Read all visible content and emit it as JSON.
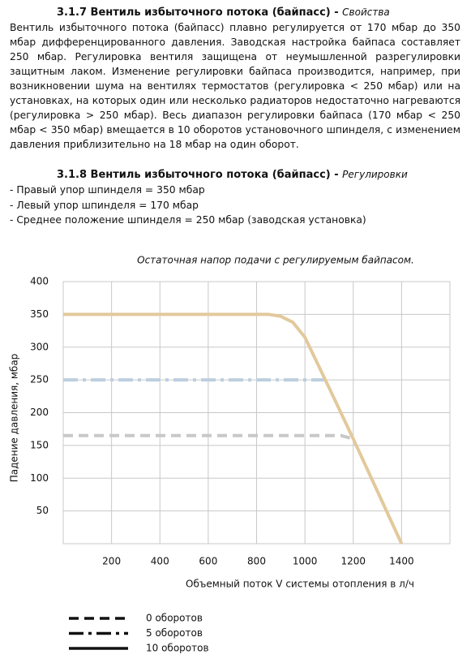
{
  "section1": {
    "heading": "3.1.7 Вентиль избыточного потока (байпасс) - ",
    "subheading": "Свойства",
    "paragraph": "Вентиль избыточного потока (байпасс) плавно регулируется от 170 мбар до 350 мбар дифференцированного давления. Заводская  настройка байпаса составляет 250 мбар. Регулировка вентиля защищена от неумышленной разрегулировки защитным лаком. Изменение регулировки байпаса производится, например, при возникновении шума на вентилях термостатов (регулировка < 250 мбар) или на установках, на которых один или несколько радиаторов недостаточно нагреваются (регулировка > 250 мбар). Весь диапазон регулировки байпаса (170 мбар < 250 мбар < 350 мбар) вмещается в 10 оборотов установочного шпинделя, с изменением давления приблизительно на 18 мбар на один оборот."
  },
  "section2": {
    "heading": "3.1.8 Вентиль избыточного потока (байпасс)  - ",
    "subheading": "Регулировки",
    "items": [
      "- Правый упор шпинделя = 350 мбар",
      "- Левый упор шпинделя = 170 мбар",
      "- Среднее положение шпинделя = 250 мбар (заводская установка)"
    ]
  },
  "chart_data": {
    "type": "line",
    "title": "Остаточная напор подачи с регулируемым байпасом.",
    "x_label": "Объемный поток V системы отопления в л/ч",
    "y_label": "Падение давления, мбар",
    "xlim": [
      0,
      1600
    ],
    "xticks": [
      200,
      400,
      600,
      800,
      1000,
      1200,
      1400
    ],
    "ylim": [
      0,
      400
    ],
    "yticks": [
      50,
      100,
      150,
      200,
      250,
      300,
      350,
      400
    ],
    "grid": true,
    "series": [
      {
        "name": "0 оборотов",
        "color": "#c8c8c8",
        "style": "dashed",
        "x": [
          0,
          1150,
          1200
        ],
        "values": [
          165,
          165,
          160
        ]
      },
      {
        "name": "5 оборотов",
        "color": "#bccfe0",
        "style": "dashdot",
        "x": [
          0,
          1090
        ],
        "values": [
          250,
          250
        ]
      },
      {
        "name": "10 оборотов",
        "color": "#e2c99c",
        "style": "solid",
        "x": [
          0,
          850,
          900,
          950,
          1000,
          1100,
          1200,
          1300,
          1400
        ],
        "values": [
          350,
          350,
          347,
          338,
          315,
          238,
          160,
          80,
          0
        ]
      }
    ]
  }
}
